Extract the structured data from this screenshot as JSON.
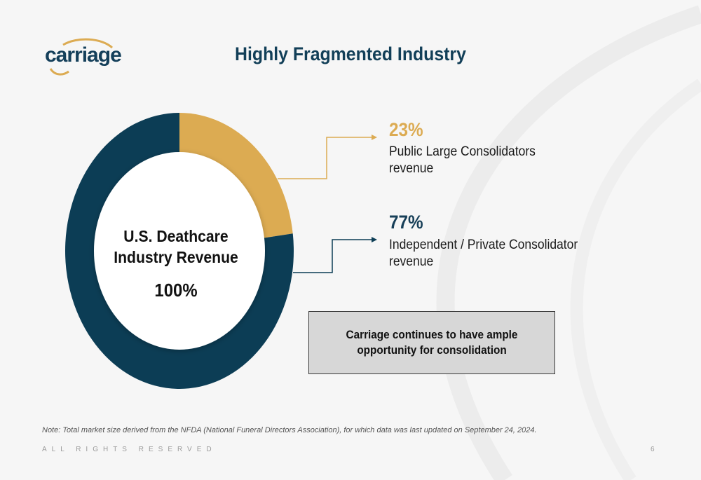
{
  "logo": {
    "text": "carriage"
  },
  "title": "Highly Fragmented Industry",
  "colors": {
    "gold": "#dcab52",
    "navy": "#0c3d55",
    "title": "#123f58"
  },
  "chart_data": {
    "type": "pie",
    "title": "",
    "center_label": "U.S. Deathcare Industry Revenue",
    "center_value": "100%",
    "slices": [
      {
        "label": "Public Large Consolidators revenue",
        "value": 23,
        "display": "23%",
        "color": "#dcab52"
      },
      {
        "label": "Independent / Private Consolidator revenue",
        "value": 77,
        "display": "77%",
        "color": "#0c3d55"
      }
    ]
  },
  "callout": "Carriage continues to have ample opportunity for consolidation",
  "note": "Note: Total market size derived from the NFDA (National Funeral Directors Association), for which data was last updated on September 24, 2024.",
  "footer": "ALL RIGHTS RESERVED",
  "page_number": "6"
}
